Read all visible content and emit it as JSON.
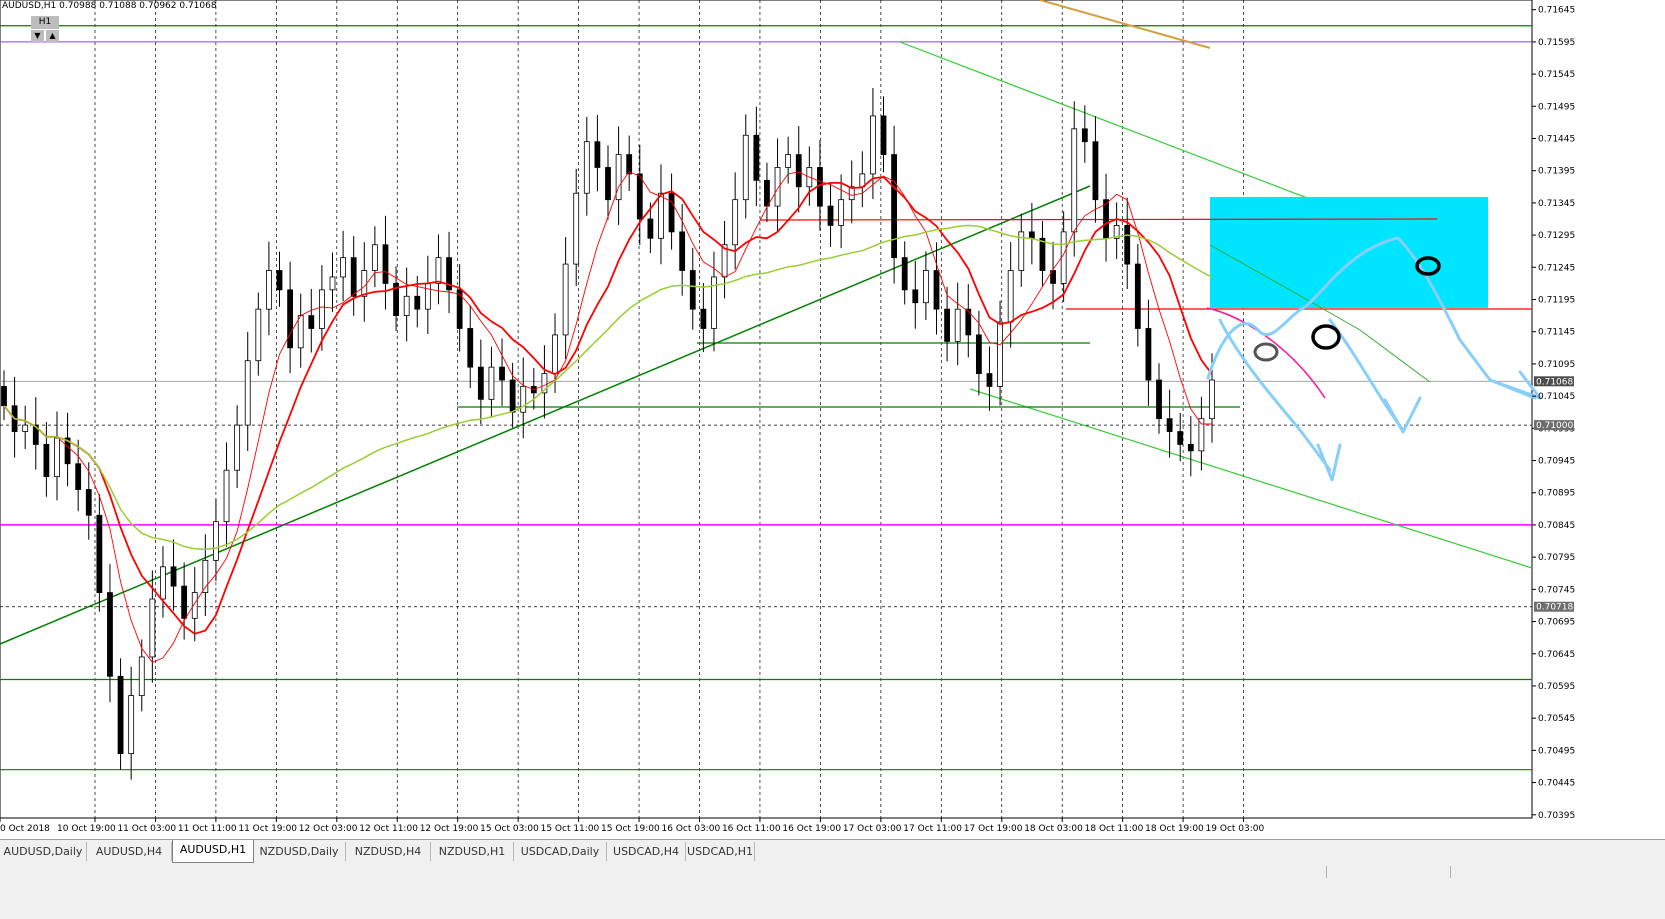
{
  "header": {
    "symbol_line": "AUDUSD,H1  0.70988 0.71088 0.70962 0.71068",
    "timeframe": "H1",
    "btn_down": "▼",
    "btn_up": "▲"
  },
  "price_axis": {
    "labels": [
      "0.71645",
      "0.71595",
      "0.71545",
      "0.71495",
      "0.71445",
      "0.71395",
      "0.71345",
      "0.71295",
      "0.71245",
      "0.71195",
      "0.71145",
      "0.71095",
      "0.71045",
      "0.70995",
      "0.70945",
      "0.70895",
      "0.70845",
      "0.70795",
      "0.70745",
      "0.70695",
      "0.70645",
      "0.70595",
      "0.70545",
      "0.70495",
      "0.70445",
      "0.70395"
    ],
    "markers": [
      {
        "label": "0.71068",
        "price": 0.71068
      },
      {
        "label": "0.71000",
        "price": 0.71
      },
      {
        "label": "0.70718",
        "price": 0.70718
      }
    ]
  },
  "time_axis": {
    "labels": [
      "0 Oct 2018",
      "10 Oct 19:00",
      "11 Oct 03:00",
      "11 Oct 11:00",
      "11 Oct 19:00",
      "12 Oct 03:00",
      "12 Oct 11:00",
      "12 Oct 19:00",
      "15 Oct 03:00",
      "15 Oct 11:00",
      "15 Oct 19:00",
      "16 Oct 03:00",
      "16 Oct 11:00",
      "16 Oct 19:00",
      "17 Oct 03:00",
      "17 Oct 11:00",
      "17 Oct 19:00",
      "18 Oct 03:00",
      "18 Oct 11:00",
      "18 Oct 19:00",
      "19 Oct 03:00"
    ]
  },
  "tabs": [
    {
      "label": "AUDUSD,Daily",
      "active": false
    },
    {
      "label": "AUDUSD,H4",
      "active": false
    },
    {
      "label": "AUDUSD,H1",
      "active": true
    },
    {
      "label": "NZDUSD,Daily",
      "active": false
    },
    {
      "label": "NZDUSD,H4",
      "active": false
    },
    {
      "label": "NZDUSD,H1",
      "active": false
    },
    {
      "label": "USDCAD,Daily",
      "active": false
    },
    {
      "label": "USDCAD,H4",
      "active": false
    },
    {
      "label": "USDCAD,H1",
      "active": false
    }
  ],
  "chart_data": {
    "type": "candlestick",
    "symbol": "AUDUSD",
    "timeframe": "H1",
    "ylim": [
      0.7039,
      0.7166
    ],
    "last_price": 0.71068,
    "colors": {
      "bull": "#ffffff",
      "bear": "#000000",
      "ma_fast": "#ff0000",
      "ma_slow": "#9acd32",
      "ma_long": "#d2a040",
      "trend": "#00a000",
      "support_magenta": "#ff00ff",
      "level_purple": "#8040ff",
      "zone_cyan": "#00e5ff",
      "forecast": "#87cefa"
    },
    "horizontal_levels": [
      0.7162,
      0.71595,
      0.70845,
      0.70605,
      0.70465,
      0.71068,
      0.71,
      0.70718
    ],
    "close_path": [
      0.7103,
      0.7099,
      0.71,
      0.7097,
      0.7092,
      0.7098,
      0.7094,
      0.709,
      0.7086,
      0.7074,
      0.7061,
      0.7049,
      0.7058,
      0.7064,
      0.7073,
      0.7078,
      0.7075,
      0.707,
      0.7074,
      0.7079,
      0.7085,
      0.7093,
      0.71,
      0.711,
      0.7118,
      0.7124,
      0.7121,
      0.7112,
      0.7117,
      0.7115,
      0.7121,
      0.7123,
      0.7126,
      0.712,
      0.7124,
      0.7128,
      0.7122,
      0.7117,
      0.712,
      0.7118,
      0.7122,
      0.7126,
      0.7121,
      0.7115,
      0.7109,
      0.7104,
      0.7109,
      0.7107,
      0.7102,
      0.7106,
      0.7105,
      0.7108,
      0.7114,
      0.7125,
      0.7136,
      0.7144,
      0.714,
      0.7135,
      0.7142,
      0.7139,
      0.7132,
      0.7129,
      0.7136,
      0.713,
      0.7124,
      0.7118,
      0.7115,
      0.7123,
      0.7128,
      0.7135,
      0.7145,
      0.7138,
      0.7134,
      0.714,
      0.7142,
      0.7137,
      0.714,
      0.7134,
      0.7131,
      0.7135,
      0.7137,
      0.7139,
      0.7148,
      0.7142,
      0.7126,
      0.7121,
      0.7119,
      0.7124,
      0.7118,
      0.7113,
      0.7118,
      0.7114,
      0.7108,
      0.7106,
      0.7116,
      0.7124,
      0.713,
      0.7129,
      0.7124,
      0.7122,
      0.713,
      0.7146,
      0.7144,
      0.7135,
      0.7129,
      0.7131,
      0.7125,
      0.7115,
      0.7107,
      0.7101,
      0.7099,
      0.7097,
      0.7096,
      0.7101,
      0.7107
    ]
  }
}
